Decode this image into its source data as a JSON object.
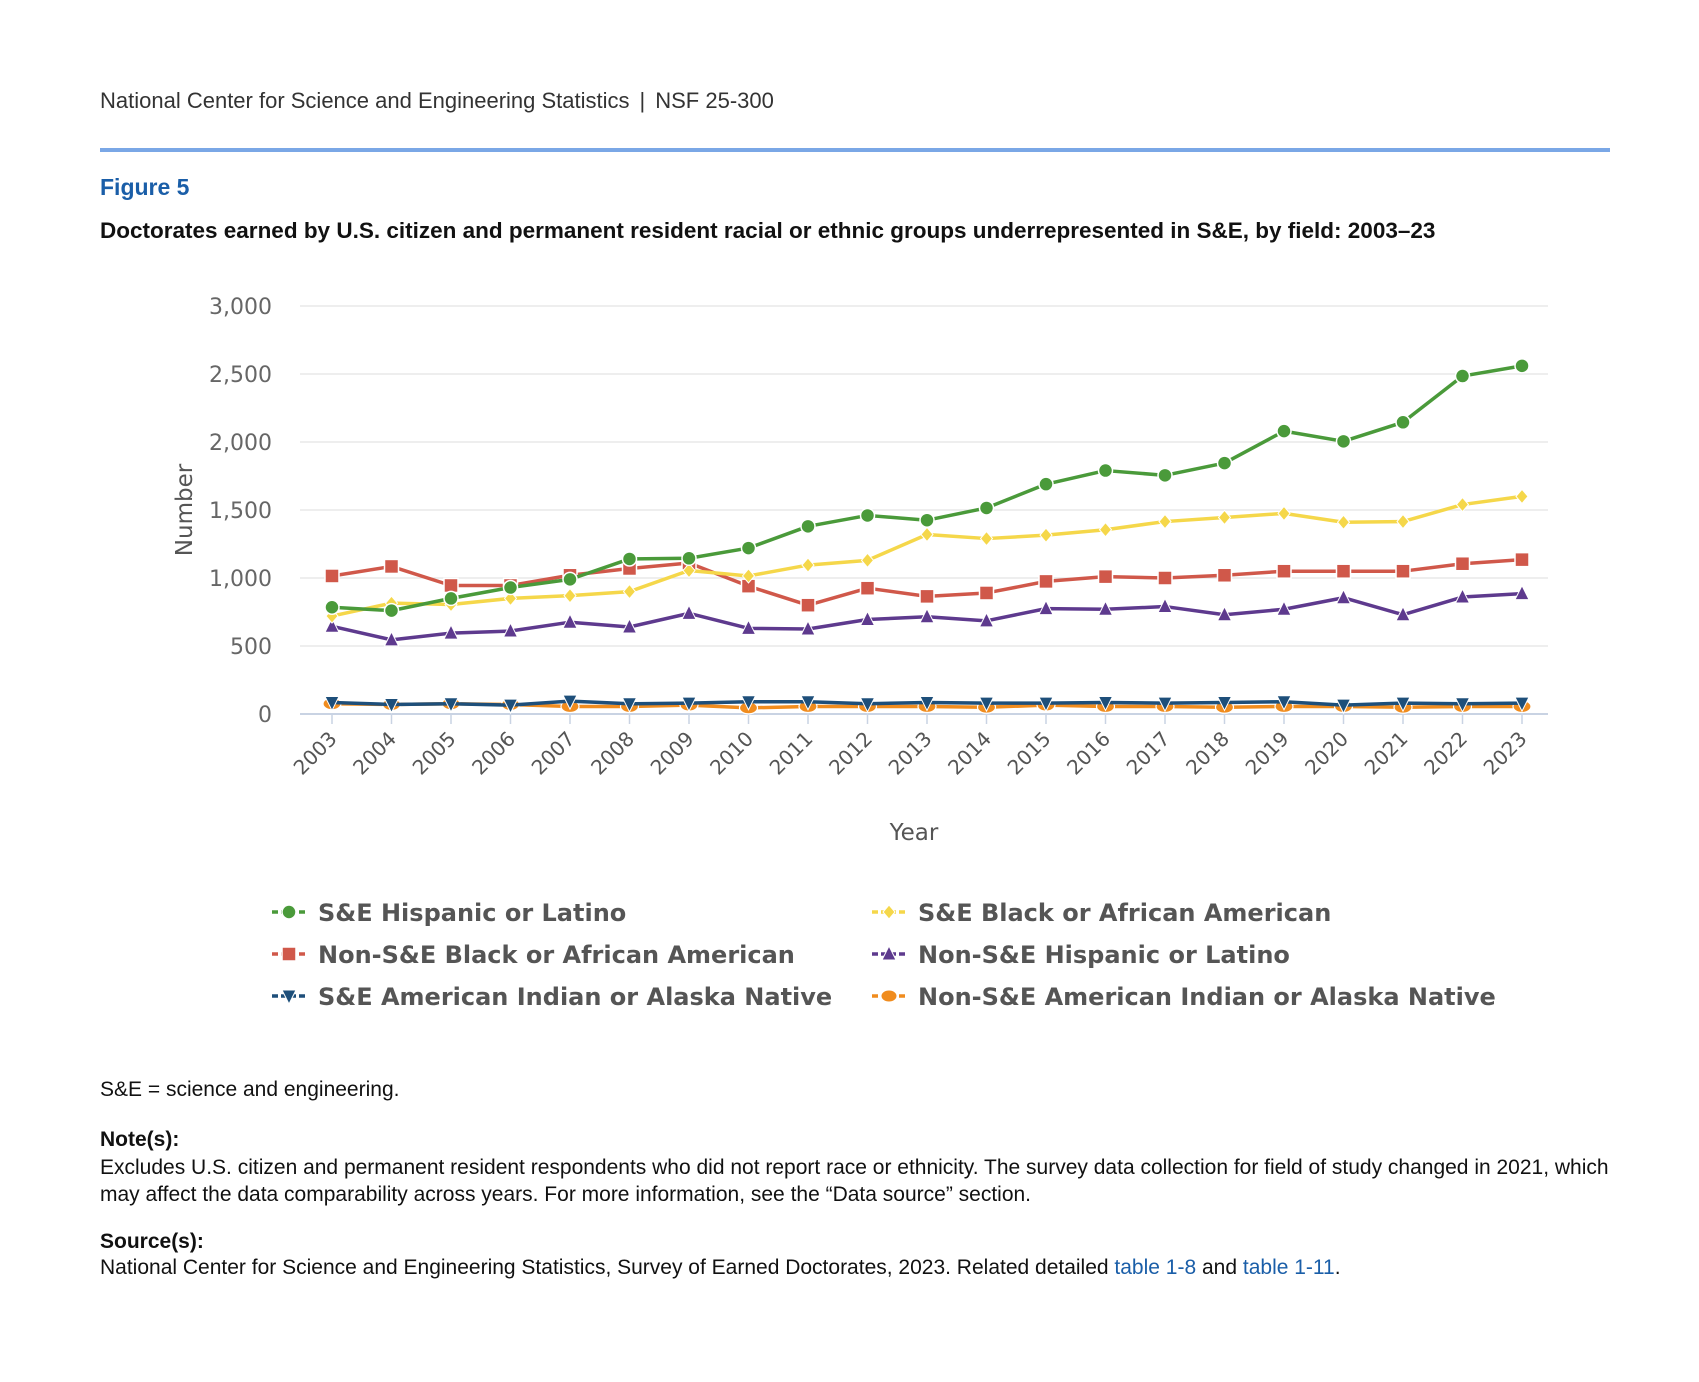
{
  "header": {
    "org": "National Center for Science and Engineering Statistics",
    "separator": "|",
    "report": "NSF 25-300"
  },
  "figure": {
    "label": "Figure 5",
    "title": "Doctorates earned by U.S. citizen and permanent resident racial or ethnic groups underrepresented in S&E, by field: 2003–23"
  },
  "chart_data": {
    "type": "line",
    "xlabel": "Year",
    "ylabel": "Number",
    "ylim": [
      0,
      3000
    ],
    "yticks": [
      0,
      500,
      1000,
      1500,
      2000,
      2500,
      3000
    ],
    "ytick_labels": [
      "0",
      "500",
      "1,000",
      "1,500",
      "2,000",
      "2,500",
      "3,000"
    ],
    "grid": true,
    "legend_position": "bottom",
    "categories": [
      "2003",
      "2004",
      "2005",
      "2006",
      "2007",
      "2008",
      "2009",
      "2010",
      "2011",
      "2012",
      "2013",
      "2014",
      "2015",
      "2016",
      "2017",
      "2018",
      "2019",
      "2020",
      "2021",
      "2022",
      "2023"
    ],
    "series": [
      {
        "name": "S&E Hispanic or Latino",
        "color": "#4a9a3a",
        "marker": "circle",
        "values": [
          785,
          760,
          850,
          930,
          990,
          1140,
          1145,
          1220,
          1380,
          1460,
          1425,
          1515,
          1690,
          1790,
          1755,
          1845,
          2080,
          2005,
          2145,
          2485,
          2560
        ]
      },
      {
        "name": "S&E Black or African American",
        "color": "#f5d74a",
        "marker": "diamond",
        "values": [
          720,
          815,
          805,
          850,
          870,
          900,
          1055,
          1015,
          1095,
          1130,
          1320,
          1290,
          1315,
          1355,
          1415,
          1445,
          1475,
          1410,
          1415,
          1540,
          1600
        ]
      },
      {
        "name": "Non-S&E Black or African American",
        "color": "#d0584a",
        "marker": "square",
        "values": [
          1015,
          1085,
          945,
          945,
          1020,
          1070,
          1110,
          940,
          800,
          925,
          865,
          890,
          975,
          1010,
          1000,
          1020,
          1050,
          1050,
          1050,
          1105,
          1135
        ]
      },
      {
        "name": "Non-S&E Hispanic or Latino",
        "color": "#5e3a8e",
        "marker": "triangle-up",
        "values": [
          645,
          545,
          595,
          610,
          675,
          640,
          740,
          630,
          625,
          695,
          715,
          685,
          775,
          770,
          790,
          730,
          770,
          855,
          730,
          860,
          885
        ]
      },
      {
        "name": "S&E American Indian or Alaska Native",
        "color": "#1e4f7a",
        "marker": "triangle-down",
        "values": [
          85,
          70,
          75,
          65,
          95,
          75,
          80,
          90,
          90,
          75,
          85,
          80,
          80,
          85,
          80,
          85,
          90,
          65,
          80,
          75,
          80
        ]
      },
      {
        "name": "Non-S&E American Indian or Alaska Native",
        "color": "#f08c1e",
        "marker": "circle",
        "values": [
          75,
          70,
          75,
          70,
          55,
          55,
          65,
          45,
          55,
          55,
          55,
          50,
          65,
          55,
          55,
          50,
          55,
          55,
          50,
          55,
          55
        ]
      }
    ]
  },
  "footer": {
    "abbrev": "S&E = science and engineering.",
    "notes_label": "Note(s):",
    "notes_text": "Excludes U.S. citizen and permanent resident respondents who did not report race or ethnicity. The survey data collection for field of study changed in 2021, which may affect the data comparability across years. For more information, see the “Data source” section.",
    "source_label": "Source(s):",
    "source_prefix": "National Center for Science and Engineering Statistics, Survey of Earned Doctorates, 2023. Related detailed ",
    "source_link1": "table 1-8",
    "source_and": " and ",
    "source_link2": "table 1-11",
    "source_end": "."
  }
}
